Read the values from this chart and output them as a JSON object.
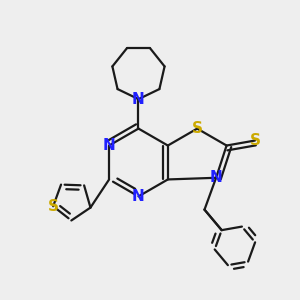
{
  "bg_color": "#eeeeee",
  "bond_color": "#1a1a1a",
  "N_color": "#2020ff",
  "S_color": "#ccaa00",
  "lw": 1.6,
  "dbo": 0.05,
  "figsize": [
    3.0,
    3.0
  ],
  "dpi": 100,
  "xlim": [
    -1.6,
    1.5
  ],
  "ylim": [
    -1.5,
    1.8
  ]
}
